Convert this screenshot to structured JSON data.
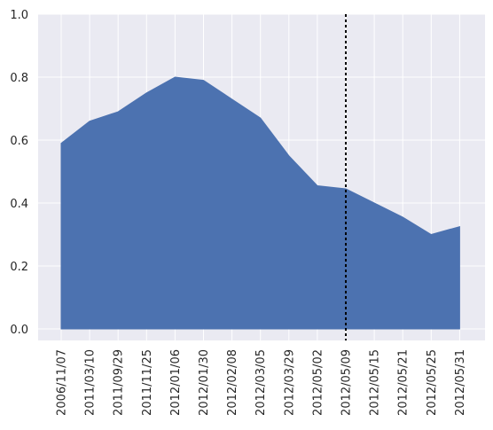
{
  "chart_data": {
    "type": "area",
    "categories": [
      "2006/11/07",
      "2011/03/10",
      "2011/09/29",
      "2011/11/25",
      "2012/01/06",
      "2012/01/30",
      "2012/02/08",
      "2012/03/05",
      "2012/03/29",
      "2012/05/02",
      "2012/05/09",
      "2012/05/15",
      "2012/05/21",
      "2012/05/25",
      "2012/05/31"
    ],
    "values": [
      0.59,
      0.66,
      0.69,
      0.75,
      0.8,
      0.79,
      0.73,
      0.67,
      0.55,
      0.455,
      0.445,
      0.4,
      0.355,
      0.3,
      0.325
    ],
    "ylim": [
      0,
      1.0
    ],
    "yticks": [
      "0.0",
      "0.2",
      "0.4",
      "0.6",
      "0.8",
      "1.0"
    ],
    "grid": true,
    "reference_line": {
      "category": "2012/05/09",
      "style": "dotted",
      "color": "#000000"
    },
    "colors": {
      "fill": "#4c72b0",
      "background": "#eaeaf2",
      "grid": "#ffffff",
      "text": "#262626"
    }
  }
}
